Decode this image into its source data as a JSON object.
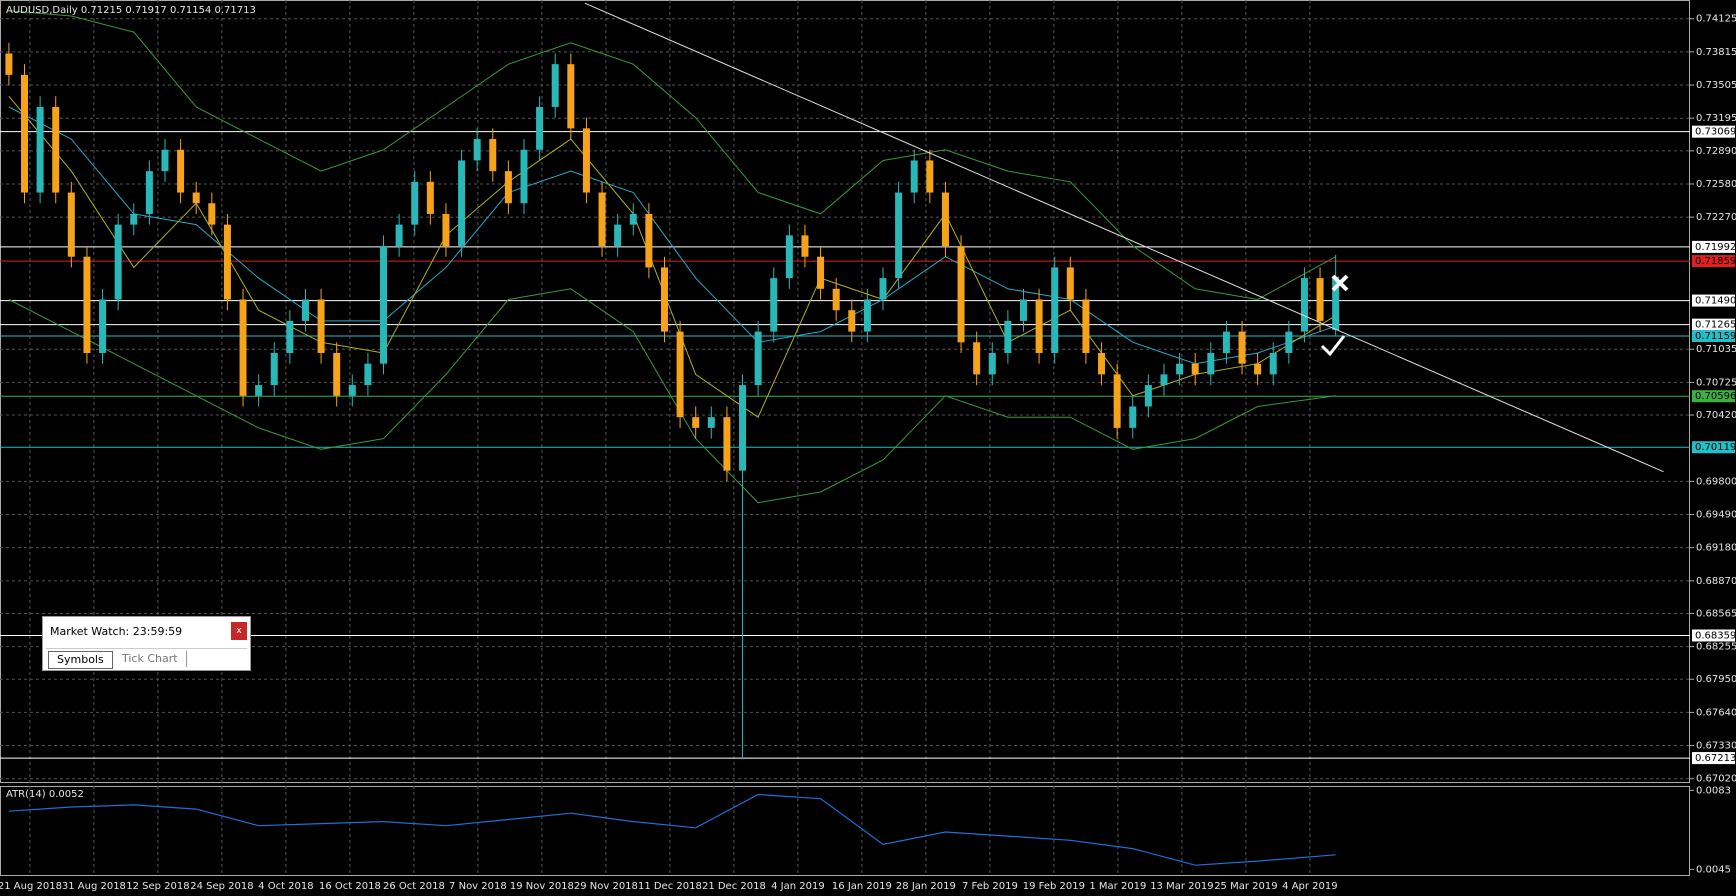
{
  "chart_data": [
    {
      "type": "candlestick",
      "title": "AUDUSD,Daily  0.71215 0.71917 0.71154 0.71713",
      "up_color": "#2ab7b7",
      "down_color": "#f5a31a",
      "grid": true,
      "xlim": [
        -0.57,
        107.7
      ],
      "ylim": [
        0.6698,
        0.743
      ],
      "yticks": [
        0.74125,
        0.73815,
        0.73505,
        0.73195,
        {
          "value": 0.7289,
          "label": "0.72890"
        },
        {
          "value": 0.7258,
          "label": "0.72580"
        },
        {
          "value": 0.7227,
          "label": "0.72270"
        },
        0.71035,
        0.70725,
        {
          "value": 0.7042,
          "label": "0.70420"
        },
        {
          "value": 0.698,
          "label": "0.69800"
        },
        {
          "value": 0.6949,
          "label": "0.69490"
        },
        {
          "value": 0.6918,
          "label": "0.69180"
        },
        {
          "value": 0.6887,
          "label": "0.68870"
        },
        0.68565,
        0.68255,
        {
          "value": 0.6795,
          "label": "0.67950"
        },
        {
          "value": 0.6764,
          "label": "0.67640"
        },
        {
          "value": 0.6733,
          "label": "0.67330"
        },
        {
          "value": 0.6702,
          "label": "0.67020"
        }
      ],
      "x_labels": [
        "21 Aug 2018",
        "31 Aug 2018",
        "12 Sep 2018",
        "24 Sep 2018",
        "4 Oct 2018",
        "16 Oct 2018",
        "26 Oct 2018",
        "7 Nov 2018",
        "19 Nov 2018",
        "29 Nov 2018",
        "11 Dec 2018",
        "21 Dec 2018",
        "4 Jan 2019",
        "16 Jan 2019",
        "28 Jan 2019",
        "7 Feb 2019",
        "19 Feb 2019",
        "1 Mar 2019",
        "13 Mar 2019",
        "25 Mar 2019",
        "4 Apr 2019"
      ],
      "open": [
        0.738,
        0.736,
        0.725,
        0.733,
        0.725,
        0.719,
        0.71,
        0.715,
        0.722,
        0.723,
        0.727,
        0.729,
        0.725,
        0.724,
        0.722,
        0.715,
        0.706,
        0.707,
        0.71,
        0.713,
        0.715,
        0.71,
        0.706,
        0.707,
        0.709,
        0.72,
        0.722,
        0.726,
        0.723,
        0.72,
        0.728,
        0.73,
        0.727,
        0.724,
        0.729,
        0.733,
        0.737,
        0.731,
        0.725,
        0.72,
        0.722,
        0.723,
        0.718,
        0.712,
        0.704,
        0.703,
        0.704,
        0.699,
        0.707,
        0.712,
        0.717,
        0.721,
        0.719,
        0.716,
        0.714,
        0.712,
        0.715,
        0.717,
        0.725,
        0.728,
        0.725,
        0.72,
        0.711,
        0.708,
        0.71,
        0.713,
        0.715,
        0.71,
        0.718,
        0.715,
        0.71,
        0.708,
        0.703,
        0.705,
        0.707,
        0.708,
        0.709,
        0.708,
        0.71,
        0.712,
        0.709,
        0.708,
        0.71,
        0.712,
        0.717,
        0.71215
      ],
      "high": [
        0.739,
        0.737,
        0.734,
        0.734,
        0.726,
        0.72,
        0.716,
        0.723,
        0.724,
        0.728,
        0.73,
        0.73,
        0.726,
        0.725,
        0.723,
        0.716,
        0.708,
        0.711,
        0.714,
        0.716,
        0.716,
        0.711,
        0.708,
        0.71,
        0.721,
        0.723,
        0.727,
        0.727,
        0.724,
        0.729,
        0.731,
        0.731,
        0.728,
        0.73,
        0.734,
        0.738,
        0.738,
        0.732,
        0.726,
        0.723,
        0.724,
        0.724,
        0.719,
        0.713,
        0.705,
        0.705,
        0.705,
        0.708,
        0.713,
        0.718,
        0.722,
        0.722,
        0.72,
        0.717,
        0.715,
        0.716,
        0.718,
        0.726,
        0.729,
        0.729,
        0.726,
        0.721,
        0.712,
        0.711,
        0.714,
        0.716,
        0.716,
        0.719,
        0.719,
        0.716,
        0.711,
        0.709,
        0.706,
        0.708,
        0.709,
        0.71,
        0.71,
        0.711,
        0.713,
        0.713,
        0.71,
        0.711,
        0.713,
        0.718,
        0.718,
        0.71917
      ],
      "low": [
        0.735,
        0.724,
        0.724,
        0.724,
        0.718,
        0.709,
        0.709,
        0.714,
        0.721,
        0.722,
        0.726,
        0.724,
        0.723,
        0.721,
        0.714,
        0.705,
        0.705,
        0.706,
        0.709,
        0.712,
        0.709,
        0.705,
        0.705,
        0.706,
        0.708,
        0.719,
        0.721,
        0.722,
        0.719,
        0.719,
        0.727,
        0.726,
        0.723,
        0.723,
        0.728,
        0.732,
        0.73,
        0.724,
        0.719,
        0.719,
        0.721,
        0.717,
        0.711,
        0.703,
        0.702,
        0.702,
        0.698,
        0.6721,
        0.706,
        0.711,
        0.716,
        0.718,
        0.715,
        0.713,
        0.711,
        0.711,
        0.714,
        0.716,
        0.724,
        0.724,
        0.719,
        0.71,
        0.707,
        0.707,
        0.709,
        0.712,
        0.709,
        0.709,
        0.714,
        0.709,
        0.707,
        0.702,
        0.702,
        0.704,
        0.706,
        0.707,
        0.707,
        0.707,
        0.709,
        0.708,
        0.707,
        0.707,
        0.709,
        0.711,
        0.712,
        0.71154
      ],
      "close": [
        0.736,
        0.725,
        0.733,
        0.725,
        0.719,
        0.71,
        0.715,
        0.722,
        0.723,
        0.727,
        0.729,
        0.725,
        0.724,
        0.722,
        0.715,
        0.706,
        0.707,
        0.71,
        0.713,
        0.715,
        0.71,
        0.706,
        0.707,
        0.709,
        0.72,
        0.722,
        0.726,
        0.723,
        0.72,
        0.728,
        0.73,
        0.727,
        0.724,
        0.729,
        0.733,
        0.737,
        0.731,
        0.725,
        0.72,
        0.722,
        0.723,
        0.718,
        0.712,
        0.704,
        0.703,
        0.704,
        0.699,
        0.707,
        0.712,
        0.717,
        0.721,
        0.719,
        0.716,
        0.714,
        0.712,
        0.715,
        0.717,
        0.725,
        0.728,
        0.725,
        0.72,
        0.711,
        0.708,
        0.71,
        0.713,
        0.715,
        0.71,
        0.718,
        0.715,
        0.71,
        0.708,
        0.703,
        0.705,
        0.707,
        0.708,
        0.709,
        0.708,
        0.71,
        0.712,
        0.709,
        0.708,
        0.71,
        0.712,
        0.717,
        0.713,
        0.71713
      ],
      "overlays": [
        {
          "color": "#3a9a3a",
          "x": [
            0,
            4,
            8,
            12,
            16,
            20,
            24,
            28,
            32,
            36,
            40,
            44,
            48,
            52,
            56,
            60,
            64,
            68,
            72,
            76,
            80,
            85
          ],
          "values": [
            0.742,
            0.7415,
            0.74,
            0.733,
            0.73,
            0.727,
            0.729,
            0.733,
            0.737,
            0.739,
            0.737,
            0.732,
            0.725,
            0.723,
            0.728,
            0.729,
            0.727,
            0.726,
            0.72,
            0.716,
            0.715,
            0.719
          ]
        },
        {
          "color": "#3a9a3a",
          "x": [
            0,
            4,
            8,
            12,
            16,
            20,
            24,
            28,
            32,
            36,
            40,
            44,
            48,
            52,
            56,
            60,
            64,
            68,
            72,
            76,
            80,
            85
          ],
          "values": [
            0.715,
            0.712,
            0.709,
            0.706,
            0.703,
            0.701,
            0.702,
            0.708,
            0.715,
            0.716,
            0.712,
            0.702,
            0.696,
            0.697,
            0.7,
            0.706,
            0.704,
            0.704,
            0.701,
            0.702,
            0.705,
            0.706
          ]
        },
        {
          "color": "#2aa6c8",
          "x": [
            0,
            4,
            8,
            12,
            16,
            20,
            24,
            28,
            32,
            36,
            40,
            44,
            48,
            52,
            56,
            60,
            64,
            68,
            72,
            76,
            80,
            85
          ],
          "values": [
            0.733,
            0.73,
            0.723,
            0.722,
            0.717,
            0.713,
            0.713,
            0.718,
            0.725,
            0.727,
            0.725,
            0.717,
            0.711,
            0.712,
            0.715,
            0.719,
            0.716,
            0.715,
            0.711,
            0.709,
            0.71,
            0.7125
          ]
        },
        {
          "color": "#b0b020",
          "x": [
            0,
            4,
            8,
            12,
            16,
            20,
            24,
            28,
            32,
            36,
            40,
            44,
            48,
            52,
            56,
            60,
            64,
            68,
            72,
            76,
            80,
            85
          ],
          "values": [
            0.734,
            0.727,
            0.718,
            0.724,
            0.714,
            0.711,
            0.71,
            0.721,
            0.726,
            0.73,
            0.723,
            0.708,
            0.704,
            0.717,
            0.715,
            0.723,
            0.711,
            0.714,
            0.706,
            0.708,
            0.709,
            0.7135
          ]
        }
      ],
      "trendline": {
        "color": "#e0e0e0",
        "x": [
          36.9,
          106
        ],
        "values": [
          0.7427,
          0.6989
        ]
      },
      "levels": [
        {
          "value": 0.73069,
          "label": "0.73069",
          "color": "#ffffff"
        },
        {
          "value": 0.71992,
          "label": "0.71992",
          "color": "#ffffff"
        },
        {
          "value": 0.71859,
          "label": "0.71859",
          "color": "#e02020"
        },
        {
          "value": 0.7149,
          "label": "0.71490",
          "color": "#ffffff"
        },
        {
          "value": 0.71265,
          "label": "0.71265",
          "color": "#ffffff"
        },
        {
          "value": 0.71159,
          "label": "0.71159",
          "color": "#20c0c8"
        },
        {
          "value": 0.70596,
          "label": "0.70596",
          "color": "#3cb043"
        },
        {
          "value": 0.70119,
          "label": "0.70119",
          "color": "#20c0c8"
        },
        {
          "value": 0.68359,
          "label": "0.68359",
          "color": "#ffffff"
        },
        {
          "value": 0.67213,
          "label": "0.67213",
          "color": "#ffffff"
        }
      ]
    },
    {
      "type": "line",
      "title": "ATR(14) 0.0052",
      "color": "#1e6fd9",
      "xlim": [
        -0.57,
        107.7
      ],
      "ylim": [
        0.00423,
        0.00851
      ],
      "yticks": [
        0.0083,
        0.0045
      ],
      "x": [
        0,
        4,
        8,
        12,
        16,
        20,
        24,
        28,
        32,
        36,
        40,
        44,
        48,
        52,
        56,
        60,
        64,
        68,
        72,
        76,
        80,
        85
      ],
      "values": [
        0.0073,
        0.0075,
        0.0076,
        0.0074,
        0.0066,
        0.0067,
        0.0068,
        0.0066,
        0.0069,
        0.0072,
        0.0068,
        0.0065,
        0.0081,
        0.0079,
        0.0057,
        0.0063,
        0.0061,
        0.0059,
        0.0055,
        0.0047,
        0.0049,
        0.0052
      ]
    }
  ],
  "market_watch": {
    "title": "Market Watch: 23:59:59",
    "close": "x",
    "tabs": [
      "Symbols",
      "Tick Chart"
    ]
  }
}
